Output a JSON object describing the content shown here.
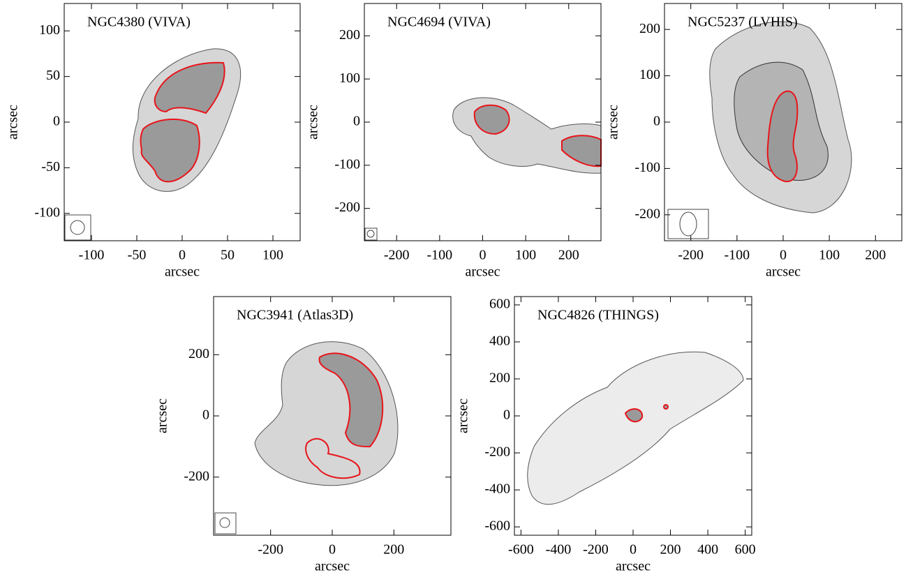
{
  "chart_data": [
    {
      "type": "map",
      "title": "NGC4380 (VIVA)",
      "xlabel": "arcsec",
      "ylabel": "arcsec",
      "xlim": [
        -130,
        130
      ],
      "ylim": [
        -130,
        130
      ],
      "xticks": [
        -100,
        -50,
        0,
        50,
        100
      ],
      "yticks": [
        -100,
        -50,
        0,
        50,
        100
      ]
    },
    {
      "type": "map",
      "title": "NGC4694 (VIVA)",
      "xlabel": "arcsec",
      "ylabel": "arcsec",
      "xlim": [
        -275,
        275
      ],
      "ylim": [
        -275,
        275
      ],
      "xticks": [
        -200,
        -100,
        0,
        100,
        200
      ],
      "yticks": [
        -200,
        -100,
        0,
        100,
        200
      ]
    },
    {
      "type": "map",
      "title": "NGC5237 (LVHIS)",
      "xlabel": "arcsec",
      "ylabel": "arcsec",
      "xlim": [
        -257,
        257
      ],
      "ylim": [
        -256,
        256
      ],
      "xticks": [
        -200,
        -100,
        0,
        100,
        200
      ],
      "yticks": [
        -200,
        -100,
        0,
        100,
        200
      ]
    },
    {
      "type": "map",
      "title": "NGC3941 (Atlas3D)",
      "xlabel": "arcsec",
      "ylabel": "arcsec",
      "xlim": [
        -385,
        385
      ],
      "ylim": [
        -390,
        390
      ],
      "xticks": [
        -200,
        0,
        200
      ],
      "yticks": [
        -200,
        0,
        200
      ]
    },
    {
      "type": "map",
      "title": "NGC4826 (THINGS)",
      "xlabel": "arcsec",
      "ylabel": "arcsec",
      "xlim": [
        -635,
        635
      ],
      "ylim": [
        -645,
        645
      ],
      "xticks": [
        -600,
        -400,
        -200,
        0,
        200,
        400,
        600
      ],
      "yticks": [
        -600,
        -400,
        -200,
        0,
        200,
        400,
        600
      ]
    }
  ]
}
